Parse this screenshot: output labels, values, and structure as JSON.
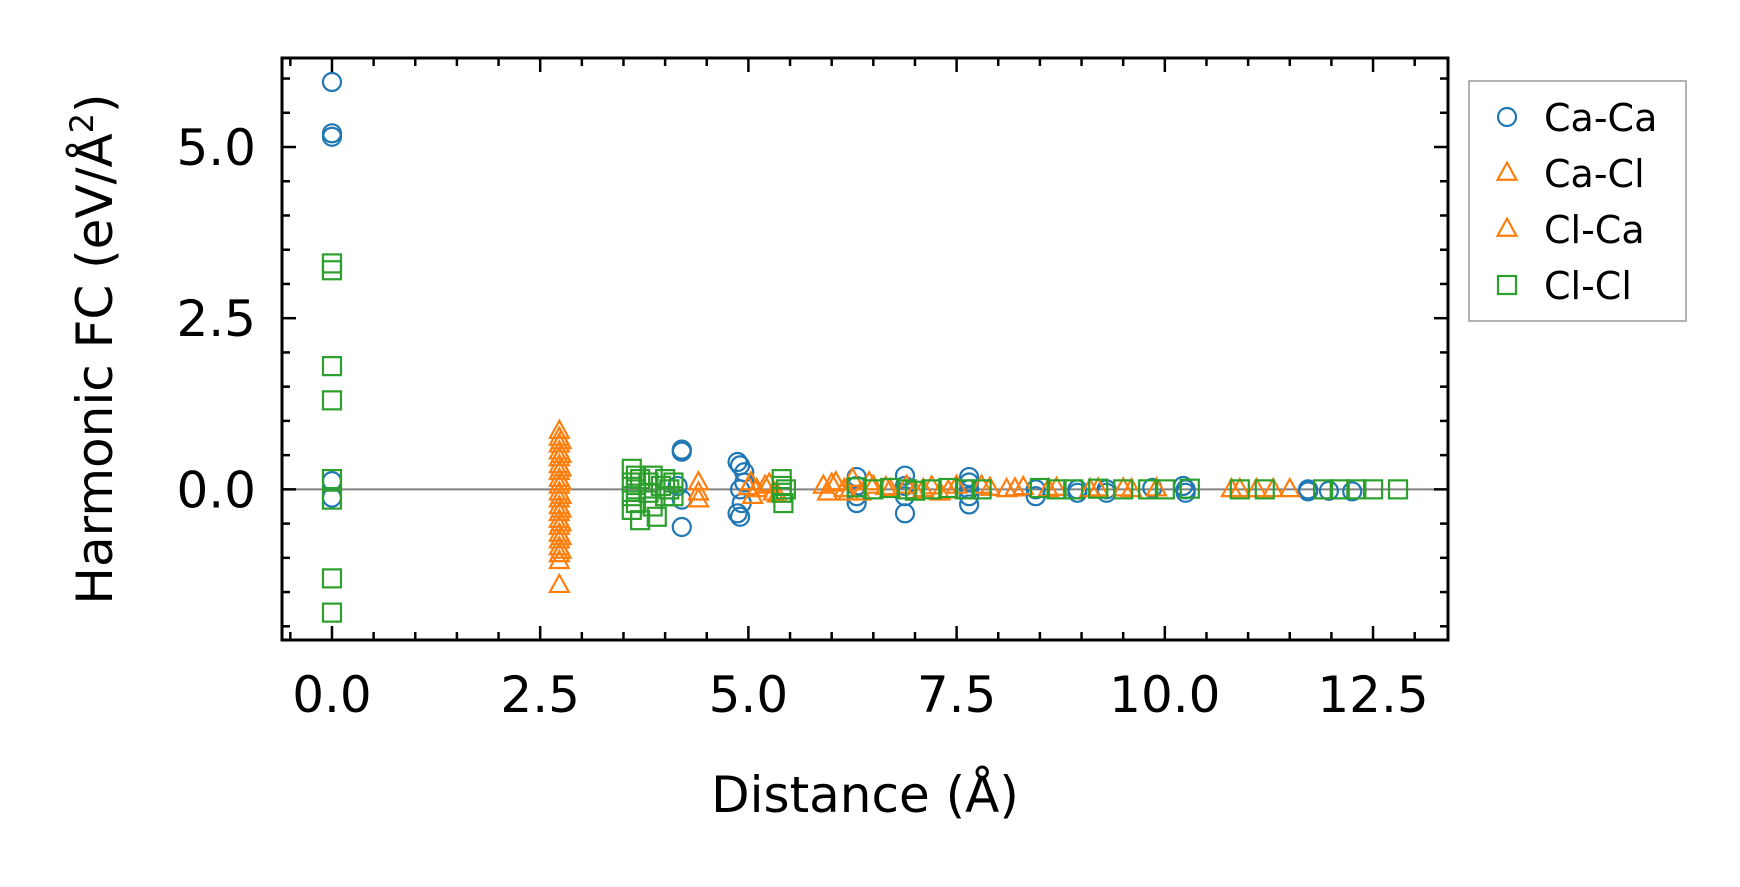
{
  "chart_data": {
    "type": "scatter",
    "title": "",
    "xlabel": "Distance (Å)",
    "ylabel_main": "Harmonic FC (eV/Å",
    "ylabel_sup": "2",
    "ylabel_close": ")",
    "xlim": [
      -0.6,
      13.4
    ],
    "ylim": [
      -2.2,
      6.3
    ],
    "xticks": [
      0.0,
      2.5,
      5.0,
      7.5,
      10.0,
      12.5
    ],
    "xtick_labels": [
      "0.0",
      "2.5",
      "5.0",
      "7.5",
      "10.0",
      "12.5"
    ],
    "xminor_step": 0.5,
    "yticks": [
      0.0,
      2.5,
      5.0
    ],
    "ytick_labels": [
      "0.0",
      "2.5",
      "5.0"
    ],
    "yminor_step": 0.5,
    "reference_line_y": 0.0,
    "reference_line_color": "#808080",
    "legend_position": "outside-upper-right",
    "series": [
      {
        "name": "Ca-Ca",
        "marker": "circle",
        "color": "#1f77b4",
        "points": [
          [
            0.0,
            5.95
          ],
          [
            0.0,
            5.2
          ],
          [
            0.0,
            5.15
          ],
          [
            0.0,
            0.12
          ],
          [
            0.0,
            -0.12
          ],
          [
            4.2,
            0.58
          ],
          [
            4.2,
            0.55
          ],
          [
            4.2,
            -0.15
          ],
          [
            4.2,
            -0.55
          ],
          [
            4.15,
            0.05
          ],
          [
            4.87,
            0.4
          ],
          [
            4.9,
            0.35
          ],
          [
            4.95,
            0.25
          ],
          [
            4.87,
            -0.35
          ],
          [
            4.9,
            -0.4
          ],
          [
            4.92,
            -0.2
          ],
          [
            4.95,
            0.1
          ],
          [
            4.9,
            0.0
          ],
          [
            6.3,
            0.18
          ],
          [
            6.3,
            0.05
          ],
          [
            6.3,
            -0.1
          ],
          [
            6.3,
            -0.2
          ],
          [
            6.88,
            0.2
          ],
          [
            6.88,
            -0.35
          ],
          [
            6.88,
            0.05
          ],
          [
            6.88,
            -0.1
          ],
          [
            7.65,
            0.18
          ],
          [
            7.65,
            0.1
          ],
          [
            7.65,
            -0.1
          ],
          [
            7.65,
            -0.22
          ],
          [
            7.65,
            0.0
          ],
          [
            8.45,
            0.0
          ],
          [
            8.45,
            -0.1
          ],
          [
            8.95,
            0.0
          ],
          [
            8.95,
            -0.05
          ],
          [
            9.3,
            0.0
          ],
          [
            9.3,
            -0.05
          ],
          [
            9.85,
            0.02
          ],
          [
            10.22,
            0.05
          ],
          [
            10.25,
            -0.05
          ],
          [
            10.25,
            0.0
          ],
          [
            11.72,
            0.0
          ],
          [
            11.72,
            -0.03
          ],
          [
            11.97,
            -0.02
          ],
          [
            12.25,
            -0.03
          ]
        ]
      },
      {
        "name": "Ca-Cl",
        "marker": "triangle",
        "color": "#ff7f0e",
        "points": [
          [
            2.73,
            0.85
          ],
          [
            2.73,
            0.75
          ],
          [
            2.73,
            0.65
          ],
          [
            2.73,
            0.55
          ],
          [
            2.73,
            0.45
          ],
          [
            2.73,
            0.35
          ],
          [
            2.73,
            0.25
          ],
          [
            2.73,
            0.15
          ],
          [
            2.73,
            0.05
          ],
          [
            2.73,
            -0.05
          ],
          [
            2.73,
            -0.15
          ],
          [
            2.73,
            -0.25
          ],
          [
            2.73,
            -0.35
          ],
          [
            2.73,
            -0.45
          ],
          [
            2.73,
            -0.55
          ],
          [
            2.73,
            -0.65
          ],
          [
            2.73,
            -0.75
          ],
          [
            2.73,
            -0.85
          ],
          [
            2.73,
            -0.95
          ],
          [
            2.73,
            -1.05
          ],
          [
            2.73,
            -1.4
          ],
          [
            4.4,
            0.1
          ],
          [
            4.4,
            -0.05
          ],
          [
            4.4,
            -0.15
          ],
          [
            5.03,
            0.1
          ],
          [
            5.1,
            0.0
          ],
          [
            5.2,
            0.05
          ],
          [
            5.3,
            -0.05
          ],
          [
            5.05,
            -0.1
          ],
          [
            5.9,
            0.05
          ],
          [
            5.95,
            -0.05
          ],
          [
            6.05,
            0.1
          ],
          [
            6.15,
            0.0
          ],
          [
            6.25,
            0.15
          ],
          [
            6.35,
            -0.05
          ],
          [
            6.5,
            0.05
          ],
          [
            6.7,
            0.0
          ],
          [
            6.9,
            0.05
          ],
          [
            7.1,
            0.0
          ],
          [
            7.3,
            -0.05
          ],
          [
            7.5,
            0.05
          ],
          [
            7.8,
            0.05
          ],
          [
            8.1,
            0.0
          ],
          [
            8.3,
            0.03
          ],
          [
            8.7,
            0.02
          ],
          [
            9.2,
            0.01
          ],
          [
            9.6,
            0.0
          ],
          [
            9.9,
            0.01
          ],
          [
            10.8,
            0.0
          ],
          [
            11.1,
            0.0
          ],
          [
            11.5,
            0.0
          ]
        ]
      },
      {
        "name": "Cl-Ca",
        "marker": "triangle",
        "color": "#ff7f0e",
        "points": [
          [
            2.75,
            0.7
          ],
          [
            2.75,
            0.5
          ],
          [
            2.75,
            0.3
          ],
          [
            2.75,
            0.1
          ],
          [
            2.75,
            -0.1
          ],
          [
            2.75,
            -0.3
          ],
          [
            2.75,
            -0.5
          ],
          [
            2.75,
            -0.7
          ],
          [
            2.75,
            -0.9
          ],
          [
            5.0,
            0.03
          ],
          [
            5.25,
            0.08
          ],
          [
            5.35,
            -0.08
          ],
          [
            6.0,
            0.08
          ],
          [
            6.2,
            -0.05
          ],
          [
            6.45,
            0.1
          ],
          [
            6.65,
            0.03
          ],
          [
            7.0,
            -0.03
          ],
          [
            7.2,
            0.04
          ],
          [
            7.4,
            -0.02
          ],
          [
            7.9,
            0.02
          ],
          [
            8.2,
            0.01
          ],
          [
            8.6,
            0.0
          ],
          [
            9.1,
            0.0
          ],
          [
            9.5,
            0.01
          ],
          [
            10.9,
            0.0
          ],
          [
            11.3,
            0.0
          ]
        ]
      },
      {
        "name": "Cl-Cl",
        "marker": "square",
        "color": "#2ca02c",
        "points": [
          [
            0.0,
            3.3
          ],
          [
            0.0,
            3.2
          ],
          [
            0.0,
            1.8
          ],
          [
            0.0,
            1.3
          ],
          [
            0.0,
            0.15
          ],
          [
            0.0,
            -0.15
          ],
          [
            0.0,
            -1.3
          ],
          [
            0.0,
            -1.8
          ],
          [
            3.6,
            0.3
          ],
          [
            3.6,
            0.1
          ],
          [
            3.6,
            -0.1
          ],
          [
            3.6,
            -0.3
          ],
          [
            3.65,
            0.2
          ],
          [
            3.65,
            0.0
          ],
          [
            3.65,
            -0.2
          ],
          [
            3.7,
            -0.45
          ],
          [
            3.7,
            0.15
          ],
          [
            3.8,
            0.1
          ],
          [
            3.8,
            -0.05
          ],
          [
            3.85,
            0.2
          ],
          [
            3.85,
            -0.25
          ],
          [
            3.9,
            -0.4
          ],
          [
            3.95,
            0.05
          ],
          [
            4.0,
            0.15
          ],
          [
            4.0,
            -0.1
          ],
          [
            4.05,
            0.0
          ],
          [
            4.1,
            0.1
          ],
          [
            4.1,
            -0.1
          ],
          [
            5.4,
            0.15
          ],
          [
            5.4,
            0.05
          ],
          [
            5.4,
            -0.05
          ],
          [
            5.42,
            -0.2
          ],
          [
            5.45,
            0.0
          ],
          [
            6.3,
            0.03
          ],
          [
            6.5,
            0.0
          ],
          [
            6.7,
            0.02
          ],
          [
            6.9,
            0.0
          ],
          [
            7.0,
            -0.02
          ],
          [
            7.2,
            0.0
          ],
          [
            7.4,
            0.02
          ],
          [
            7.6,
            0.0
          ],
          [
            7.8,
            0.0
          ],
          [
            8.5,
            0.02
          ],
          [
            8.7,
            0.0
          ],
          [
            8.9,
            0.0
          ],
          [
            9.2,
            0.01
          ],
          [
            9.5,
            0.0
          ],
          [
            9.8,
            0.0
          ],
          [
            10.0,
            0.0
          ],
          [
            10.3,
            0.01
          ],
          [
            10.9,
            0.0
          ],
          [
            11.2,
            0.0
          ],
          [
            11.9,
            0.0
          ],
          [
            12.1,
            0.0
          ],
          [
            12.3,
            0.0
          ],
          [
            12.5,
            0.0
          ],
          [
            12.8,
            0.0
          ]
        ]
      }
    ]
  }
}
